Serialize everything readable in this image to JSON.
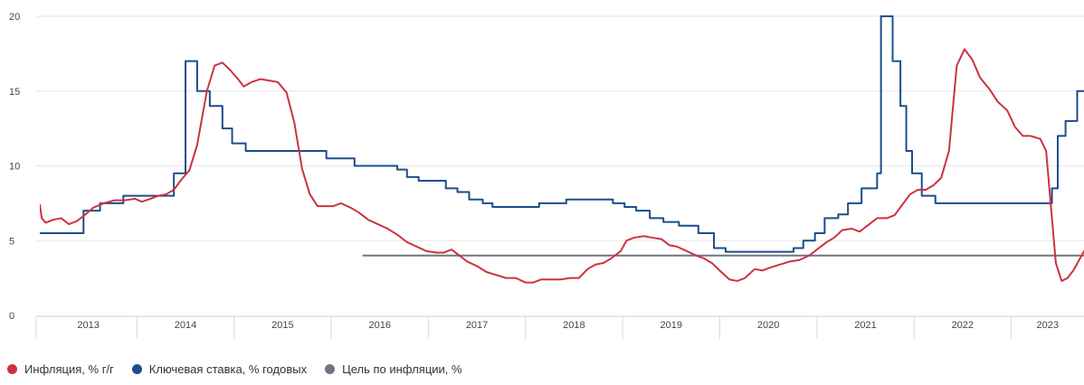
{
  "chart_data": {
    "type": "line",
    "ylim": [
      0,
      20
    ],
    "y_ticks": [
      "0",
      "5",
      "10",
      "15",
      "20"
    ],
    "xlim": [
      2013.0,
      2023.75
    ],
    "x_ticks": [
      "2013",
      "2014",
      "2015",
      "2016",
      "2017",
      "2018",
      "2019",
      "2020",
      "2021",
      "2022",
      "2023"
    ],
    "grid": true,
    "legend_position": "bottom-left",
    "colors": {
      "inflation": "#cc3340",
      "key_rate": "#1a4e8c",
      "target": "#707480"
    },
    "series": [
      {
        "name": "Инфляция, % г/г",
        "style": "line",
        "color": "#cc3340",
        "points": [
          [
            2013.0,
            7.4
          ],
          [
            2013.02,
            6.5
          ],
          [
            2013.06,
            6.2
          ],
          [
            2013.14,
            6.4
          ],
          [
            2013.22,
            6.5
          ],
          [
            2013.3,
            6.1
          ],
          [
            2013.38,
            6.3
          ],
          [
            2013.46,
            6.7
          ],
          [
            2013.55,
            7.2
          ],
          [
            2013.66,
            7.5
          ],
          [
            2013.77,
            7.7
          ],
          [
            2013.88,
            7.7
          ],
          [
            2013.98,
            7.8
          ],
          [
            2014.05,
            7.6
          ],
          [
            2014.14,
            7.8
          ],
          [
            2014.22,
            8.0
          ],
          [
            2014.3,
            8.1
          ],
          [
            2014.38,
            8.4
          ],
          [
            2014.46,
            9.1
          ],
          [
            2014.54,
            9.7
          ],
          [
            2014.62,
            11.4
          ],
          [
            2014.72,
            15.0
          ],
          [
            2014.8,
            16.7
          ],
          [
            2014.88,
            16.9
          ],
          [
            2014.96,
            16.4
          ],
          [
            2015.04,
            15.8
          ],
          [
            2015.1,
            15.3
          ],
          [
            2015.18,
            15.6
          ],
          [
            2015.27,
            15.8
          ],
          [
            2015.36,
            15.7
          ],
          [
            2015.45,
            15.6
          ],
          [
            2015.54,
            14.9
          ],
          [
            2015.62,
            12.9
          ],
          [
            2015.7,
            9.8
          ],
          [
            2015.78,
            8.1
          ],
          [
            2015.86,
            7.3
          ],
          [
            2015.94,
            7.3
          ],
          [
            2016.02,
            7.3
          ],
          [
            2016.1,
            7.5
          ],
          [
            2016.2,
            7.2
          ],
          [
            2016.28,
            6.9
          ],
          [
            2016.38,
            6.4
          ],
          [
            2016.48,
            6.1
          ],
          [
            2016.58,
            5.8
          ],
          [
            2016.68,
            5.4
          ],
          [
            2016.78,
            4.9
          ],
          [
            2016.88,
            4.6
          ],
          [
            2016.98,
            4.3
          ],
          [
            2017.08,
            4.2
          ],
          [
            2017.16,
            4.2
          ],
          [
            2017.24,
            4.4
          ],
          [
            2017.32,
            4.0
          ],
          [
            2017.4,
            3.6
          ],
          [
            2017.5,
            3.3
          ],
          [
            2017.6,
            2.9
          ],
          [
            2017.7,
            2.7
          ],
          [
            2017.8,
            2.5
          ],
          [
            2017.9,
            2.5
          ],
          [
            2018.0,
            2.2
          ],
          [
            2018.08,
            2.2
          ],
          [
            2018.16,
            2.4
          ],
          [
            2018.26,
            2.4
          ],
          [
            2018.36,
            2.4
          ],
          [
            2018.46,
            2.5
          ],
          [
            2018.55,
            2.5
          ],
          [
            2018.64,
            3.1
          ],
          [
            2018.72,
            3.4
          ],
          [
            2018.8,
            3.5
          ],
          [
            2018.88,
            3.8
          ],
          [
            2018.98,
            4.3
          ],
          [
            2019.04,
            5.0
          ],
          [
            2019.12,
            5.2
          ],
          [
            2019.22,
            5.3
          ],
          [
            2019.3,
            5.2
          ],
          [
            2019.4,
            5.1
          ],
          [
            2019.48,
            4.7
          ],
          [
            2019.56,
            4.6
          ],
          [
            2019.66,
            4.3
          ],
          [
            2019.76,
            4.0
          ],
          [
            2019.84,
            3.8
          ],
          [
            2019.92,
            3.5
          ],
          [
            2020.0,
            3.0
          ],
          [
            2020.1,
            2.4
          ],
          [
            2020.18,
            2.3
          ],
          [
            2020.26,
            2.5
          ],
          [
            2020.36,
            3.1
          ],
          [
            2020.44,
            3.0
          ],
          [
            2020.52,
            3.2
          ],
          [
            2020.62,
            3.4
          ],
          [
            2020.72,
            3.6
          ],
          [
            2020.82,
            3.7
          ],
          [
            2020.92,
            4.0
          ],
          [
            2021.0,
            4.4
          ],
          [
            2021.1,
            4.9
          ],
          [
            2021.18,
            5.2
          ],
          [
            2021.26,
            5.7
          ],
          [
            2021.36,
            5.8
          ],
          [
            2021.44,
            5.6
          ],
          [
            2021.52,
            6.0
          ],
          [
            2021.62,
            6.5
          ],
          [
            2021.72,
            6.5
          ],
          [
            2021.8,
            6.7
          ],
          [
            2021.88,
            7.4
          ],
          [
            2021.96,
            8.1
          ],
          [
            2022.04,
            8.4
          ],
          [
            2022.12,
            8.4
          ],
          [
            2022.2,
            8.7
          ],
          [
            2022.28,
            9.2
          ],
          [
            2022.36,
            11.0
          ],
          [
            2022.44,
            16.7
          ],
          [
            2022.52,
            17.8
          ],
          [
            2022.6,
            17.1
          ],
          [
            2022.68,
            15.9
          ],
          [
            2022.78,
            15.1
          ],
          [
            2022.86,
            14.3
          ],
          [
            2022.96,
            13.7
          ],
          [
            2023.04,
            12.6
          ],
          [
            2023.12,
            12.0
          ],
          [
            2023.2,
            12.0
          ],
          [
            2023.3,
            11.8
          ],
          [
            2023.36,
            11.0
          ],
          [
            2023.4,
            8.0
          ],
          [
            2023.44,
            5.0
          ],
          [
            2023.46,
            3.5
          ],
          [
            2023.52,
            2.3
          ],
          [
            2023.58,
            2.5
          ],
          [
            2023.64,
            3.0
          ],
          [
            2023.7,
            3.7
          ],
          [
            2023.75,
            4.3
          ]
        ]
      },
      {
        "name": "Ключевая ставка, % годовых",
        "style": "step",
        "color": "#1a4e8c",
        "points": [
          [
            2013.0,
            5.5
          ],
          [
            2013.45,
            7.0
          ],
          [
            2013.62,
            7.5
          ],
          [
            2013.86,
            8.0
          ],
          [
            2014.15,
            8.0
          ],
          [
            2014.38,
            9.5
          ],
          [
            2014.5,
            17.0
          ],
          [
            2014.62,
            15.0
          ],
          [
            2014.75,
            14.0
          ],
          [
            2014.88,
            12.5
          ],
          [
            2014.98,
            11.5
          ],
          [
            2015.12,
            11.0
          ],
          [
            2015.95,
            10.5
          ],
          [
            2016.24,
            10.0
          ],
          [
            2016.68,
            9.75
          ],
          [
            2016.78,
            9.25
          ],
          [
            2016.9,
            9.0
          ],
          [
            2017.18,
            8.5
          ],
          [
            2017.3,
            8.25
          ],
          [
            2017.42,
            7.75
          ],
          [
            2017.56,
            7.5
          ],
          [
            2017.66,
            7.25
          ],
          [
            2018.14,
            7.5
          ],
          [
            2018.42,
            7.75
          ],
          [
            2018.9,
            7.5
          ],
          [
            2019.02,
            7.25
          ],
          [
            2019.14,
            7.0
          ],
          [
            2019.28,
            6.5
          ],
          [
            2019.42,
            6.25
          ],
          [
            2019.58,
            6.0
          ],
          [
            2019.78,
            5.5
          ],
          [
            2019.94,
            4.5
          ],
          [
            2020.06,
            4.25
          ],
          [
            2020.68,
            4.25
          ],
          [
            2020.76,
            4.5
          ],
          [
            2020.86,
            5.0
          ],
          [
            2020.98,
            5.5
          ],
          [
            2021.08,
            6.5
          ],
          [
            2021.22,
            6.75
          ],
          [
            2021.32,
            7.5
          ],
          [
            2021.46,
            8.5
          ],
          [
            2021.62,
            9.5
          ],
          [
            2021.66,
            20.0
          ],
          [
            2021.78,
            17.0
          ],
          [
            2021.86,
            14.0
          ],
          [
            2021.92,
            11.0
          ],
          [
            2021.98,
            9.5
          ],
          [
            2022.08,
            8.0
          ],
          [
            2022.22,
            7.5
          ],
          [
            2022.56,
            7.5
          ],
          [
            2023.42,
            8.5
          ],
          [
            2023.48,
            12.0
          ],
          [
            2023.56,
            13.0
          ],
          [
            2023.68,
            15.0
          ]
        ]
      },
      {
        "name": "Цель по инфляции, %",
        "style": "line",
        "color": "#707480",
        "points": [
          [
            2016.33,
            4.0
          ],
          [
            2023.75,
            4.0
          ]
        ]
      }
    ]
  },
  "legend": [
    {
      "label": "Инфляция, % г/г",
      "color": "#cc3340"
    },
    {
      "label": "Ключевая ставка, % годовых",
      "color": "#1a4e8c"
    },
    {
      "label": "Цель по инфляции, %",
      "color": "#707480"
    }
  ]
}
